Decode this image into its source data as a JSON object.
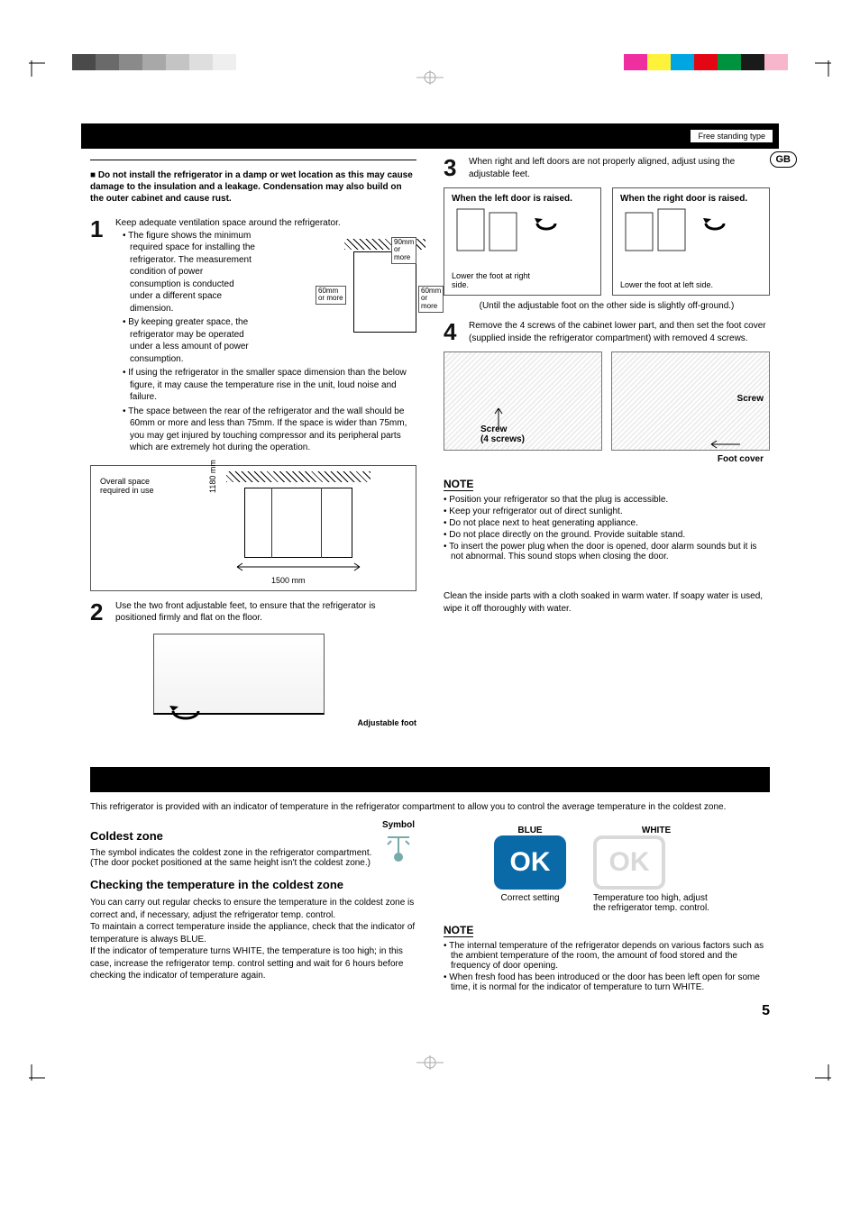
{
  "page_number": "5",
  "region_badge": "GB",
  "top_band_label": "Free standing type",
  "color_bar": {
    "gray_shades": [
      "#4a4a4a",
      "#6a6a6a",
      "#8a8a8a",
      "#a8a8a8",
      "#c4c4c4",
      "#dedede",
      "#efefef",
      "#ffffff"
    ],
    "cmyk_colors": [
      "#ffffff",
      "#ef2fa0",
      "#fff23a",
      "#00a6e2",
      "#e30613",
      "#00923f",
      "#1a1a1a",
      "#f7b6cc"
    ]
  },
  "warning_block": {
    "bullet_prefix": "■",
    "text": "Do not install the refrigerator in a damp or wet location as this may cause damage to the insulation and a leakage. Condensation may also build on the outer cabinet and cause rust."
  },
  "left_steps": {
    "s1": {
      "num": "1",
      "lead": "Keep adequate ventilation space around the refrigerator.",
      "bullets": [
        "The figure shows the minimum required space for installing the refrigerator. The measurement condition of power consumption is conducted under a different space dimension.",
        "By keeping greater space, the refrigerator may be operated under a less amount of power consumption.",
        "If using the refrigerator in the smaller space dimension than the below figure, it may cause the temperature rise in the unit, loud noise and failure.",
        "The space between the rear of the refrigerator and the wall should be 60mm or more and less than 75mm. If the space is wider than 75mm, you may get injured by touching compressor and its peripheral parts which are extremely hot during the operation."
      ],
      "clearance": {
        "top": "90mm",
        "top_sub": "or more",
        "side": "60mm",
        "side_sub": "or more"
      },
      "overall_fig": {
        "label": "Overall space required in use",
        "height": "1180 mm",
        "width": "1500 mm"
      }
    },
    "s2": {
      "num": "2",
      "text": "Use the two front adjustable feet, to ensure that the refrigerator is positioned firmly and flat on the floor.",
      "callout": "Adjustable foot"
    }
  },
  "right_steps": {
    "s3": {
      "num": "3",
      "text": "When right and left doors are not properly aligned, adjust using the adjustable feet.",
      "left_door": {
        "title": "When the left door is raised.",
        "hint": "Lower the foot at right side."
      },
      "right_door": {
        "title": "When the right door is raised.",
        "hint": "Lower the foot at left side."
      },
      "caption": "(Until the adjustable foot on the other side is slightly off-ground.)"
    },
    "s4": {
      "num": "4",
      "text": "Remove the 4 screws of the cabinet lower part, and then set the foot cover (supplied inside the refrigerator compartment) with removed 4 screws.",
      "screw_label": "Screw",
      "screw_count_label": "(4 screws)",
      "foot_cover_label": "Foot cover"
    },
    "note_heading": "NOTE",
    "notes": [
      "Position your refrigerator so that the plug is accessible.",
      "Keep your refrigerator out of direct sunlight.",
      "Do not place next to heat generating appliance.",
      "Do not place directly on the ground. Provide suitable stand.",
      "To insert the power plug when the door is opened, door alarm sounds but it is not abnormal. This sound stops when closing the door."
    ],
    "before_use": "Clean the inside parts with a cloth soaked in warm water. If soapy water is used, wipe it off thoroughly with water."
  },
  "thermal_section": {
    "intro": "This refrigerator is provided with an indicator of temperature in the refrigerator compartment to allow you to control the average temperature in the coldest zone.",
    "coldest_heading": "Coldest zone",
    "symbol_label": "Symbol",
    "coldest_text": "The symbol indicates the coldest zone in the refrigerator compartment.",
    "coldest_sub": "(The door pocket positioned at the same height isn't the coldest zone.)",
    "check_heading": "Checking the temperature in the coldest zone",
    "check_text": "You can carry out regular checks to ensure the temperature in the coldest zone is correct and, if  necessary, adjust the refrigerator temp. control.\nTo maintain a correct temperature inside the appliance, check that the indicator of temperature is always BLUE.\nIf the indicator of temperature turns WHITE, the temperature is too high; in this case, increase the refrigerator temp. control setting and wait for 6 hours before checking the indicator of temperature again.",
    "ok": {
      "blue_label": "BLUE",
      "white_label": "WHITE",
      "blue_color": "#0a6aa8",
      "white_color": "#d9d9d9",
      "ok_text": "OK",
      "correct": "Correct setting",
      "too_high": "Temperature too high, adjust the refrigerator temp. control."
    },
    "note_heading": "NOTE",
    "notes": [
      "The internal temperature of the refrigerator depends on various factors such as the ambient temperature of the room, the amount of food stored and the frequency of door opening.",
      "When fresh food has been introduced or the door has been left open for some time, it is normal for the indicator of temperature to turn WHITE."
    ]
  }
}
